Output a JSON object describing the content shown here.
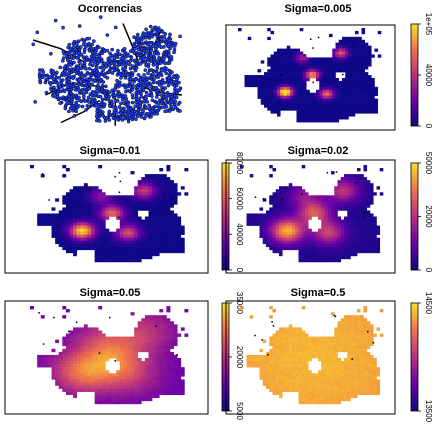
{
  "figure": {
    "panels": [
      {
        "id": "occ",
        "title": "Ocorrencias",
        "has_box": false,
        "legend": null
      },
      {
        "id": "s0005",
        "title": "Sigma=0.005",
        "has_box": true,
        "legend": {
          "ticks": [
            "0",
            "40000",
            "1e+05"
          ]
        }
      },
      {
        "id": "s001",
        "title": "Sigma=0.01",
        "has_box": true,
        "legend": {
          "ticks": [
            "0",
            "40000",
            "60000",
            "80000"
          ]
        }
      },
      {
        "id": "s002",
        "title": "Sigma=0.02",
        "has_box": true,
        "legend": {
          "ticks": [
            "0",
            "20000",
            "50000"
          ]
        }
      },
      {
        "id": "s005",
        "title": "Sigma=0.05",
        "has_box": true,
        "legend": {
          "ticks": [
            "5000",
            "20000",
            "35000"
          ]
        }
      },
      {
        "id": "s05",
        "title": "Sigma=0.5",
        "has_box": true,
        "legend": {
          "ticks": [
            "13500",
            "14500"
          ]
        }
      }
    ],
    "colors": {
      "low": "#0d0887",
      "mid": "#b6307f",
      "high": "#f7e225",
      "occurrence_fill": "#1f3fff",
      "outline": "#000000"
    }
  },
  "chart_data": [
    {
      "type": "scatter",
      "title": "Ocorrencias"
    },
    {
      "type": "heatmap",
      "title": "Sigma=0.005",
      "colorbar_ticks": [
        "0",
        "40000",
        "1e+05"
      ]
    },
    {
      "type": "heatmap",
      "title": "Sigma=0.01",
      "colorbar_ticks": [
        "0",
        "40000",
        "60000",
        "80000"
      ]
    },
    {
      "type": "heatmap",
      "title": "Sigma=0.02",
      "colorbar_ticks": [
        "0",
        "20000",
        "50000"
      ]
    },
    {
      "type": "heatmap",
      "title": "Sigma=0.05",
      "colorbar_ticks": [
        "5000",
        "20000",
        "35000"
      ]
    },
    {
      "type": "heatmap",
      "title": "Sigma=0.5",
      "colorbar_ticks": [
        "13500",
        "14500"
      ]
    }
  ]
}
